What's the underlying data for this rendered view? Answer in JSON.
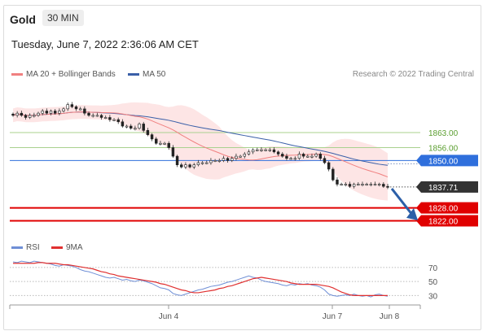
{
  "header": {
    "instrument": "Gold",
    "interval": "30 MIN",
    "datetime": "Tuesday, June 7, 2022 2:36:06 AM CET",
    "copyright": "Research © 2022 Trading Central"
  },
  "legend": {
    "ma20": "MA 20 + Bollinger Bands",
    "ma50": "MA 50",
    "rsi": "RSI",
    "ma9": "9MA"
  },
  "colors": {
    "ma20": "#f08080",
    "ma50": "#3a5fa8",
    "bands": "#fde0e0",
    "resistance_green": "#a9d18e",
    "pivot_blue": "#2f6fdc",
    "support_red": "#e00000",
    "current_dark": "#333333",
    "rsi": "#6f8fd6",
    "rsi_ma": "#e03030",
    "arrow": "#2c5fa8"
  },
  "chart_data": {
    "type": "candlestick",
    "y_range": [
      1815,
      1880
    ],
    "current_price": {
      "label": "1837.71",
      "value": 1837.71
    },
    "levels": [
      {
        "label": "1863.00",
        "value": 1863.0,
        "kind": "resistance"
      },
      {
        "label": "1856.00",
        "value": 1856.0,
        "kind": "resistance"
      },
      {
        "label": "1850.00",
        "value": 1850.0,
        "kind": "pivot"
      },
      {
        "label": "1828.00",
        "value": 1828.0,
        "kind": "support"
      },
      {
        "label": "1822.00",
        "value": 1822.0,
        "kind": "support"
      }
    ],
    "x_ticks": [
      "Jun 4",
      "Jun 7",
      "Jun 8"
    ],
    "close": [
      1871,
      1872,
      1871,
      1870,
      1871,
      1871,
      1872,
      1873,
      1872,
      1873,
      1872,
      1873,
      1874,
      1876,
      1875,
      1874,
      1874,
      1872,
      1871,
      1871,
      1871,
      1870,
      1870,
      1869,
      1869,
      1868,
      1866,
      1866,
      1865,
      1865,
      1867,
      1864,
      1862,
      1860,
      1858,
      1858,
      1858,
      1856,
      1852,
      1848,
      1847,
      1848,
      1847,
      1848,
      1849,
      1849,
      1849,
      1850,
      1850,
      1850,
      1851,
      1850,
      1851,
      1852,
      1852,
      1853,
      1854,
      1855,
      1855,
      1855,
      1855,
      1855,
      1854,
      1853,
      1852,
      1851,
      1851,
      1851,
      1853,
      1852,
      1852,
      1852,
      1853,
      1851,
      1849,
      1846,
      1841,
      1839,
      1839,
      1839,
      1838,
      1839,
      1839,
      1839,
      1839,
      1839,
      1839,
      1839,
      1838,
      1837.71
    ],
    "rsi": {
      "levels": [
        70,
        50,
        30
      ],
      "values": [
        78,
        77,
        79,
        78,
        77,
        79,
        78,
        77,
        76,
        75,
        73,
        72,
        74,
        73,
        72,
        70,
        67,
        65,
        64,
        62,
        60,
        58,
        56,
        55,
        56,
        54,
        52,
        53,
        51,
        50,
        52,
        51,
        49,
        47,
        44,
        41,
        40,
        38,
        33,
        31,
        30,
        32,
        34,
        36,
        38,
        39,
        41,
        43,
        44,
        45,
        47,
        49,
        50,
        52,
        54,
        56,
        58,
        56,
        55,
        52,
        50,
        49,
        48,
        47,
        45,
        44,
        46,
        45,
        47,
        46,
        47,
        45,
        44,
        42,
        38,
        32,
        30,
        29,
        30,
        31,
        30,
        32,
        30,
        29,
        30,
        28,
        31,
        32,
        30,
        29
      ],
      "ma_values": [
        76,
        76,
        76,
        76,
        76,
        76,
        77,
        77,
        76,
        76,
        76,
        75,
        74,
        74,
        73,
        72,
        71,
        70,
        69,
        68,
        66,
        64,
        63,
        61,
        60,
        58,
        57,
        56,
        55,
        54,
        53,
        52,
        51,
        50,
        49,
        47,
        46,
        44,
        42,
        40,
        38,
        37,
        35,
        34,
        34,
        35,
        36,
        37,
        38,
        40,
        41,
        43,
        44,
        46,
        48,
        50,
        52,
        54,
        55,
        56,
        55,
        54,
        53,
        52,
        51,
        50,
        48,
        47,
        46,
        46,
        46,
        46,
        46,
        45,
        44,
        43,
        41,
        38,
        35,
        33,
        31,
        30,
        30,
        30,
        30,
        30,
        30,
        30,
        30,
        30
      ]
    }
  }
}
